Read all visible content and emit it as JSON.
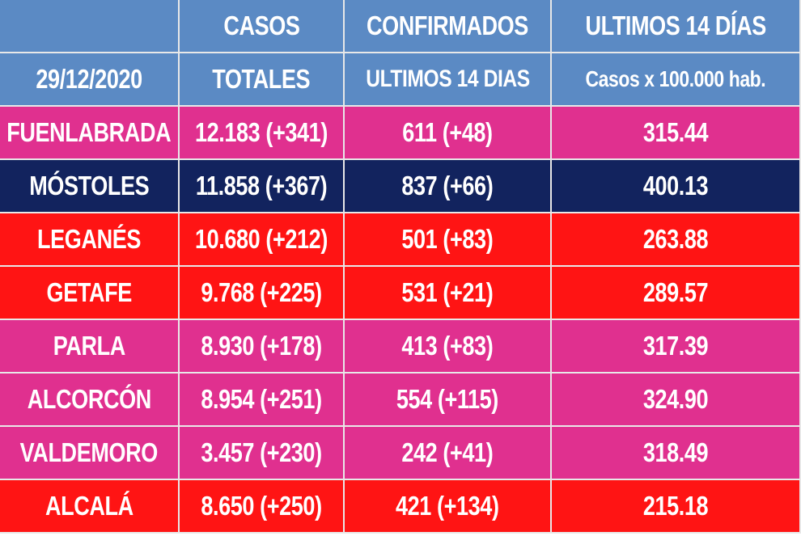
{
  "colors": {
    "header_bg": "#5b8ac4",
    "pink": "#e0308f",
    "navy": "#12235e",
    "red": "#ff1414",
    "text": "#ffffff"
  },
  "header": {
    "row1": [
      "",
      "CASOS",
      "CONFIRMADOS",
      "ULTIMOS 14 DÍAS"
    ],
    "row2": [
      "29/12/2020",
      "TOTALES",
      "ULTIMOS 14 DIAS",
      "Casos x 100.000 hab."
    ]
  },
  "rows": [
    {
      "city": "FUENLABRADA",
      "total": "12.183 (+341)",
      "last14": "611 (+48)",
      "rate": "315.44",
      "color": "#e0308f"
    },
    {
      "city": "MÓSTOLES",
      "total": "11.858 (+367)",
      "last14": "837 (+66)",
      "rate": "400.13",
      "color": "#12235e"
    },
    {
      "city": "LEGANÉS",
      "total": "10.680 (+212)",
      "last14": "501 (+83)",
      "rate": "263.88",
      "color": "#ff1414"
    },
    {
      "city": "GETAFE",
      "total": "9.768 (+225)",
      "last14": "531 (+21)",
      "rate": "289.57",
      "color": "#ff1414"
    },
    {
      "city": "PARLA",
      "total": "8.930 (+178)",
      "last14": "413 (+83)",
      "rate": "317.39",
      "color": "#e0308f"
    },
    {
      "city": "ALCORCÓN",
      "total": "8.954 (+251)",
      "last14": "554 (+115)",
      "rate": "324.90",
      "color": "#e0308f"
    },
    {
      "city": "VALDEMORO",
      "total": "3.457 (+230)",
      "last14": "242 (+41)",
      "rate": "318.49",
      "color": "#e0308f"
    },
    {
      "city": "ALCALÁ",
      "total": "8.650 (+250)",
      "last14": "421 (+134)",
      "rate": "215.18",
      "color": "#ff1414"
    }
  ]
}
